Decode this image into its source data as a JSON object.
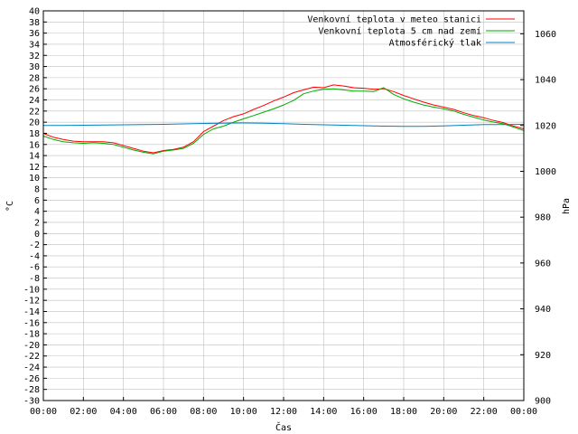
{
  "chart_data": {
    "type": "line",
    "xlabel": "Čas",
    "ylabel": "°C",
    "y2label": "hPa",
    "x_ticks": [
      "00:00",
      "02:00",
      "04:00",
      "06:00",
      "08:00",
      "10:00",
      "12:00",
      "14:00",
      "16:00",
      "18:00",
      "20:00",
      "22:00",
      "00:00"
    ],
    "x_range_hours": [
      0,
      24
    ],
    "ylim": [
      -30,
      40
    ],
    "y_ticks": [
      40,
      38,
      36,
      34,
      32,
      30,
      28,
      26,
      24,
      22,
      20,
      18,
      16,
      14,
      12,
      10,
      8,
      6,
      4,
      2,
      0,
      -2,
      -4,
      -6,
      -8,
      -10,
      -12,
      -14,
      -16,
      -18,
      -20,
      -22,
      -24,
      -26,
      -28,
      -30
    ],
    "y2lim": [
      900,
      1070
    ],
    "y2_ticks": [
      1060,
      1040,
      1020,
      1000,
      980,
      960,
      940,
      920,
      900
    ],
    "grid": true,
    "legend_position": "top-right",
    "series": [
      {
        "name": "Venkovní teplota v meteo stanici",
        "color": "#ff0000",
        "axis": "left",
        "x": [
          0,
          0.5,
          1,
          1.5,
          2,
          2.5,
          3,
          3.5,
          4,
          4.5,
          5,
          5.5,
          6,
          6.5,
          7,
          7.5,
          8,
          8.5,
          9,
          9.5,
          10,
          10.5,
          11,
          11.5,
          12,
          12.5,
          13,
          13.5,
          14,
          14.5,
          15,
          15.5,
          16,
          16.5,
          17,
          17.5,
          18,
          18.5,
          19,
          19.5,
          20,
          20.5,
          21,
          21.5,
          22,
          22.5,
          23,
          23.5,
          24
        ],
        "values": [
          18,
          17.3,
          16.9,
          16.6,
          16.5,
          16.5,
          16.5,
          16.3,
          15.8,
          15.3,
          14.8,
          14.5,
          14.9,
          15.1,
          15.5,
          16.5,
          18.3,
          19.3,
          20.3,
          21,
          21.5,
          22.3,
          23,
          23.8,
          24.5,
          25.3,
          25.8,
          26.3,
          26.2,
          26.7,
          26.5,
          26.2,
          26.1,
          25.9,
          26,
          25.5,
          24.8,
          24.2,
          23.6,
          23.1,
          22.7,
          22.3,
          21.7,
          21.2,
          20.8,
          20.3,
          19.9,
          19.3,
          18.8
        ]
      },
      {
        "name": "Venkovní teplota 5 cm nad zemí",
        "color": "#00aa00",
        "axis": "left",
        "x": [
          0,
          0.5,
          1,
          1.5,
          2,
          2.5,
          3,
          3.5,
          4,
          4.5,
          5,
          5.5,
          6,
          6.5,
          7,
          7.5,
          8,
          8.5,
          9,
          9.5,
          10,
          10.5,
          11,
          11.5,
          12,
          12.5,
          13,
          13.5,
          14,
          14.5,
          15,
          15.5,
          16,
          16.5,
          17,
          17.5,
          18,
          18.5,
          19,
          19.5,
          20,
          20.5,
          21,
          21.5,
          22,
          22.5,
          23,
          23.5,
          24
        ],
        "values": [
          17.5,
          16.9,
          16.5,
          16.3,
          16.2,
          16.3,
          16.2,
          16,
          15.5,
          15,
          14.6,
          14.3,
          14.8,
          15,
          15.3,
          16.2,
          17.8,
          18.8,
          19.3,
          20,
          20.6,
          21.2,
          21.8,
          22.4,
          23.1,
          23.9,
          25.1,
          25.6,
          25.9,
          26,
          25.8,
          25.6,
          25.6,
          25.5,
          26.2,
          25,
          24.2,
          23.6,
          23.1,
          22.7,
          22.4,
          22,
          21.4,
          20.9,
          20.4,
          20,
          19.7,
          19.1,
          18.5
        ]
      },
      {
        "name": "Atmosférický tlak",
        "color": "#0080c0",
        "axis": "right",
        "x": [
          0,
          1,
          2,
          3,
          4,
          5,
          6,
          7,
          8,
          9,
          10,
          11,
          12,
          13,
          14,
          15,
          16,
          17,
          18,
          19,
          20,
          21,
          22,
          23,
          24
        ],
        "values": [
          1020,
          1020,
          1020.1,
          1020.2,
          1020.3,
          1020.4,
          1020.5,
          1020.7,
          1020.9,
          1021,
          1021.1,
          1021,
          1020.8,
          1020.5,
          1020.3,
          1020.1,
          1019.9,
          1019.7,
          1019.6,
          1019.6,
          1019.8,
          1020.1,
          1020.4,
          1020.4,
          1020.5
        ]
      }
    ]
  }
}
